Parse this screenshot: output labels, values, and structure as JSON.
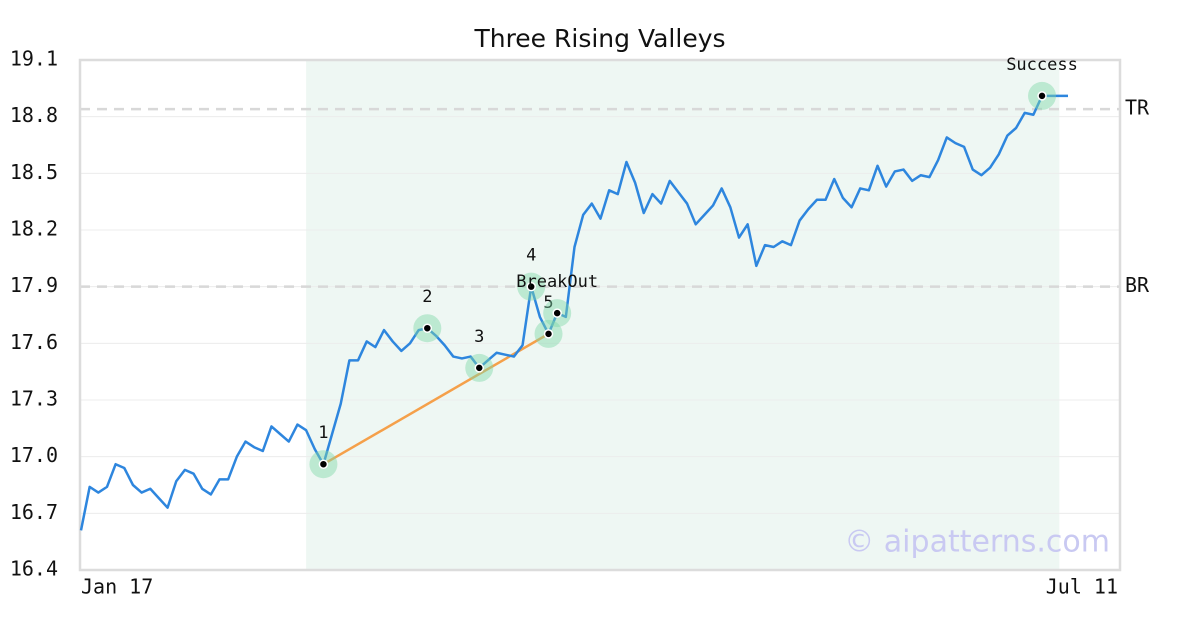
{
  "chart_data": {
    "type": "line",
    "title": "Three Rising Valleys",
    "watermark": "© aipatterns.com",
    "categories": [
      "Jan 17",
      null,
      null,
      null,
      null,
      null,
      null,
      null,
      null,
      null,
      null,
      null,
      null,
      null,
      null,
      null,
      null,
      null,
      null,
      null,
      null,
      null,
      null,
      null,
      null,
      null,
      null,
      null,
      null,
      null,
      null,
      null,
      null,
      null,
      null,
      null,
      null,
      null,
      null,
      null,
      null,
      null,
      null,
      null,
      null,
      null,
      null,
      null,
      null,
      null,
      null,
      null,
      null,
      null,
      null,
      null,
      null,
      null,
      null,
      null,
      null,
      null,
      null,
      null,
      null,
      null,
      null,
      null,
      null,
      null,
      null,
      null,
      null,
      null,
      null,
      null,
      null,
      null,
      null,
      null,
      null,
      null,
      null,
      null,
      null,
      null,
      null,
      null,
      null,
      null,
      null,
      null,
      null,
      null,
      null,
      null,
      null,
      null,
      null,
      null,
      null,
      null,
      null,
      null,
      null,
      null,
      null,
      null,
      null,
      null,
      null,
      null,
      null,
      null,
      "Jul 11"
    ],
    "series": [
      {
        "color": "#2e86de",
        "values": [
          16.61,
          16.84,
          16.81,
          16.84,
          16.96,
          16.94,
          16.85,
          16.81,
          16.83,
          16.78,
          16.73,
          16.87,
          16.93,
          16.91,
          16.83,
          16.8,
          16.88,
          16.88,
          17.0,
          17.08,
          17.05,
          17.03,
          17.16,
          17.12,
          17.08,
          17.17,
          17.14,
          17.04,
          16.96,
          17.12,
          17.28,
          17.51,
          17.51,
          17.61,
          17.58,
          17.67,
          17.61,
          17.56,
          17.6,
          17.67,
          17.68,
          17.64,
          17.59,
          17.53,
          17.52,
          17.53,
          17.47,
          17.51,
          17.55,
          17.54,
          17.53,
          17.59,
          17.9,
          17.74,
          17.65,
          17.76,
          17.74,
          18.11,
          18.28,
          18.34,
          18.26,
          18.41,
          18.39,
          18.56,
          18.45,
          18.29,
          18.39,
          18.34,
          18.46,
          18.4,
          18.34,
          18.23,
          18.28,
          18.33,
          18.42,
          18.32,
          18.16,
          18.23,
          18.01,
          18.12,
          18.11,
          18.14,
          18.12,
          18.25,
          18.31,
          18.36,
          18.36,
          18.47,
          18.37,
          18.32,
          18.42,
          18.41,
          18.54,
          18.43,
          18.51,
          18.52,
          18.46,
          18.49,
          18.48,
          18.57,
          18.69,
          18.66,
          18.64,
          18.52,
          18.49,
          18.53,
          18.6,
          18.7,
          18.74,
          18.82,
          18.81,
          18.91,
          18.91,
          18.91,
          18.91
        ]
      }
    ],
    "annotations": [
      {
        "label": "1",
        "index": 28
      },
      {
        "label": "2",
        "index": 40
      },
      {
        "label": "3",
        "index": 46
      },
      {
        "label": "4",
        "index": 52
      },
      {
        "label": "5",
        "index": 54
      },
      {
        "label": "BreakOut",
        "index": 55
      },
      {
        "label": "Success",
        "index": 111
      }
    ],
    "trend_color": "#f5a04a",
    "highlight": {
      "start": 26,
      "end": 113,
      "color": "#eef7f3"
    },
    "levels": [
      {
        "label": "TR",
        "value": 18.84
      },
      {
        "label": "BR",
        "value": 17.9
      }
    ],
    "ylim": [
      16.4,
      19.1
    ],
    "yticks": [
      16.4,
      16.7,
      {
        "value": 17,
        "label": "17.0"
      },
      17.3,
      17.6,
      17.9,
      18.2,
      18.5,
      18.8,
      19.1
    ],
    "grid": true
  }
}
